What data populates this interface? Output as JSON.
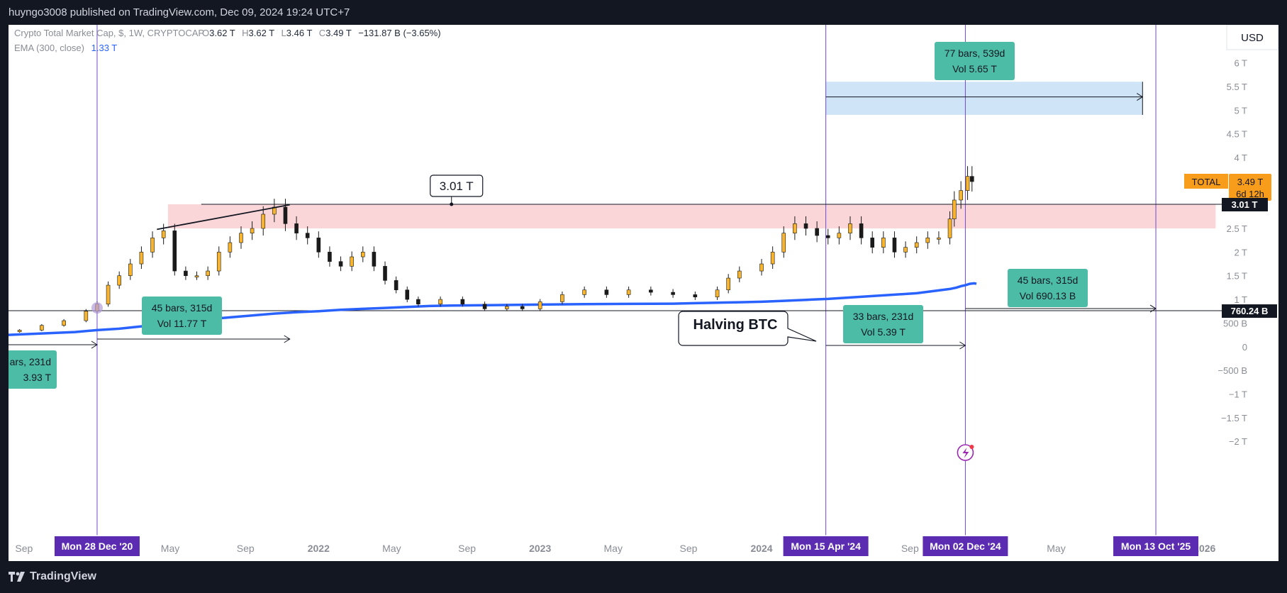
{
  "header": {
    "publish_info": "huyngo3008 published on TradingView.com, Dec 09, 2024 19:24 UTC+7"
  },
  "footer": {
    "brand": "TradingView",
    "logo_icon": "tradingview-logo-icon"
  },
  "legend": {
    "symbol": "Crypto Total Market Cap, $, 1W, CRYPTOCAP",
    "o_label": "O",
    "o_value": "3.62 T",
    "h_label": "H",
    "h_value": "3.62 T",
    "l_label": "L",
    "l_value": "3.46 T",
    "c_label": "C",
    "c_value": "3.49 T",
    "change": "−131.87 B (−3.65%)",
    "ema_label": "EMA (300, close)",
    "ema_value": "1.33 T"
  },
  "currency_button": "USD",
  "price_axis": {
    "ticks": [
      "6 T",
      "5.5 T",
      "5 T",
      "4.5 T",
      "4 T",
      "2.5 T",
      "2 T",
      "1.5 T",
      "1 T",
      "500 B",
      "0",
      "−500 B",
      "−1 T",
      "−1.5 T",
      "−2 T"
    ],
    "total_label": "TOTAL",
    "total_price": "3.49 T",
    "total_countdown": "6d 12h",
    "level_301": "3.01 T",
    "level_760": "760.24 B"
  },
  "time_axis": {
    "ticks": [
      {
        "label": "Sep",
        "t": 2020.67,
        "bold": false
      },
      {
        "label": "May",
        "t": 2021.33,
        "bold": false
      },
      {
        "label": "Sep",
        "t": 2021.67,
        "bold": false
      },
      {
        "label": "2022",
        "t": 2022.0,
        "bold": true
      },
      {
        "label": "May",
        "t": 2022.33,
        "bold": false
      },
      {
        "label": "Sep",
        "t": 2022.67,
        "bold": false
      },
      {
        "label": "2023",
        "t": 2023.0,
        "bold": true
      },
      {
        "label": "May",
        "t": 2023.33,
        "bold": false
      },
      {
        "label": "Sep",
        "t": 2023.67,
        "bold": false
      },
      {
        "label": "2024",
        "t": 2024.0,
        "bold": true
      },
      {
        "label": "Sep",
        "t": 2024.67,
        "bold": false
      },
      {
        "label": "May",
        "t": 2025.33,
        "bold": false
      },
      {
        "label": "2026",
        "t": 2026.0,
        "bold": true
      }
    ],
    "markers": [
      {
        "label": "Mon 28 Dec '20",
        "t": 2021.0
      },
      {
        "label": "Mon 15 Apr '24",
        "t": 2024.29
      },
      {
        "label": "Mon 02 Dec '24",
        "t": 2024.92
      },
      {
        "label": "Mon 13 Oct '25",
        "t": 2025.78
      }
    ]
  },
  "annotations": {
    "callout_301": "3.01 T",
    "halving": "Halving BTC",
    "ranges": [
      {
        "bars": "77 bars, 539d",
        "vol": "Vol 5.65 T"
      },
      {
        "bars": "45 bars, 315d",
        "vol": "Vol 690.13 B"
      },
      {
        "bars": "33 bars, 231d",
        "vol": "Vol 5.39 T"
      },
      {
        "bars": "45 bars, 315d",
        "vol": "Vol 11.77 T"
      },
      {
        "bars": "ars, 231d",
        "vol": "3.93 T"
      }
    ],
    "lightning_icon": "lightning-icon"
  },
  "colors": {
    "up": "#f7b42c",
    "down": "#1a1a1a",
    "ema": "#2962ff",
    "label_green": "#4dbca6",
    "marker_purple": "#5b2bb1",
    "resistance_zone": "#fbd6d8",
    "target_zone": "#cfe5f7",
    "total_badge": "#f89c1c"
  },
  "chart_data": {
    "type": "candlestick",
    "title": "Crypto Total Market Cap, $, 1W, CRYPTOCAP",
    "xlabel": "",
    "ylabel": "",
    "ylim": [
      -2.2,
      6.4
    ],
    "xlim": [
      2020.6,
      2026.1
    ],
    "x": [
      2020.65,
      2020.75,
      2020.85,
      2020.95,
      2021.0,
      2021.05,
      2021.1,
      2021.15,
      2021.2,
      2021.25,
      2021.3,
      2021.35,
      2021.4,
      2021.45,
      2021.5,
      2021.55,
      2021.6,
      2021.65,
      2021.7,
      2021.75,
      2021.8,
      2021.85,
      2021.9,
      2021.95,
      2022.0,
      2022.05,
      2022.1,
      2022.15,
      2022.2,
      2022.25,
      2022.3,
      2022.35,
      2022.4,
      2022.45,
      2022.55,
      2022.65,
      2022.75,
      2022.85,
      2022.92,
      2023.0,
      2023.1,
      2023.2,
      2023.3,
      2023.4,
      2023.5,
      2023.6,
      2023.7,
      2023.8,
      2023.85,
      2023.9,
      2024.0,
      2024.05,
      2024.1,
      2024.15,
      2024.2,
      2024.25,
      2024.3,
      2024.35,
      2024.4,
      2024.45,
      2024.5,
      2024.55,
      2024.6,
      2024.65,
      2024.7,
      2024.75,
      2024.8,
      2024.85,
      2024.87,
      2024.9,
      2024.93,
      2024.95
    ],
    "close": [
      0.35,
      0.45,
      0.55,
      0.75,
      0.9,
      1.3,
      1.5,
      1.75,
      2.0,
      2.3,
      2.45,
      1.6,
      1.5,
      1.5,
      1.6,
      2.0,
      2.2,
      2.4,
      2.5,
      2.8,
      2.95,
      2.6,
      2.4,
      2.3,
      2.0,
      1.8,
      1.7,
      1.9,
      2.0,
      1.7,
      1.4,
      1.2,
      1.0,
      0.9,
      1.0,
      0.9,
      0.8,
      0.85,
      0.8,
      0.95,
      1.1,
      1.2,
      1.1,
      1.2,
      1.15,
      1.1,
      1.05,
      1.2,
      1.45,
      1.6,
      1.75,
      2.0,
      2.4,
      2.6,
      2.5,
      2.35,
      2.3,
      2.4,
      2.6,
      2.3,
      2.1,
      2.3,
      2.0,
      2.1,
      2.2,
      2.3,
      2.3,
      2.7,
      3.1,
      3.3,
      3.6,
      3.49
    ],
    "ema": [
      0.25,
      0.28,
      0.31,
      0.35,
      0.38,
      0.43,
      0.48,
      0.53,
      0.58,
      0.62,
      0.66,
      0.7,
      0.73,
      0.75,
      0.78,
      0.8,
      0.82,
      0.84,
      0.86,
      0.87,
      0.88,
      0.89,
      0.9,
      0.905,
      0.91,
      0.92,
      0.93,
      0.94,
      0.95,
      0.97,
      0.99,
      1.01,
      1.04,
      1.07,
      1.1,
      1.13,
      1.16,
      1.19,
      1.22,
      1.25,
      1.28,
      1.3,
      1.33,
      1.34,
      1.33
    ],
    "ema_x": [
      2020.6,
      2020.75,
      2020.9,
      2021.0,
      2021.1,
      2021.2,
      2021.3,
      2021.4,
      2021.5,
      2021.6,
      2021.7,
      2021.8,
      2021.9,
      2022.0,
      2022.1,
      2022.2,
      2022.3,
      2022.4,
      2022.5,
      2022.6,
      2022.8,
      2023.0,
      2023.2,
      2023.4,
      2023.6,
      2023.7,
      2023.8,
      2023.9,
      2024.0,
      2024.1,
      2024.2,
      2024.3,
      2024.4,
      2024.5,
      2024.6,
      2024.7,
      2024.75,
      2024.8,
      2024.85,
      2024.88,
      2024.9,
      2024.92,
      2024.94,
      2024.96,
      2024.97
    ],
    "levels": {
      "resistance_top": 3.01,
      "resistance_bottom": 2.5,
      "support": 0.76024,
      "target_zone": [
        4.9,
        5.6
      ]
    }
  }
}
